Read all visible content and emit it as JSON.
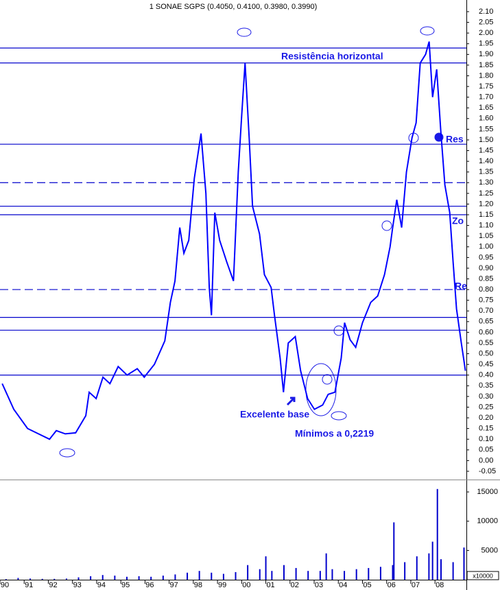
{
  "chart_data": [
    {
      "type": "line",
      "title": "1 SONAE SGPS (0.4050, 0.4100, 0.3980, 0.3990)",
      "color": "#0000ff",
      "annotations": [
        "Resistência horizontal",
        "Excelente base",
        "Mínimos a 0,2219",
        "Res",
        "Zo",
        "Re"
      ],
      "x": [
        1990.09,
        1990.57,
        1991.14,
        1992.05,
        1992.33,
        1992.7,
        1993.13,
        1993.55,
        1993.69,
        1993.98,
        1994.26,
        1994.55,
        1994.89,
        1995.26,
        1995.68,
        1995.97,
        1996.39,
        1996.82,
        1997.05,
        1997.24,
        1997.44,
        1997.61,
        1997.81,
        1998.04,
        1998.32,
        1998.52,
        1998.66,
        1998.75,
        1998.89,
        1999.09,
        1999.38,
        1999.66,
        1999.86,
        2000.0,
        2000.14,
        2000.31,
        2000.45,
        2000.74,
        2000.94,
        2001.22,
        2001.36,
        2001.59,
        2001.73,
        2001.93,
        2002.22,
        2002.44,
        2002.73,
        2003.01,
        2003.35,
        2003.58,
        2003.86,
        2004.12,
        2004.26,
        2004.49,
        2004.72,
        2005.0,
        2005.34,
        2005.63,
        2005.91,
        2006.14,
        2006.25,
        2006.42,
        2006.62,
        2006.82,
        2007.05,
        2007.22,
        2007.39,
        2007.61,
        2007.76,
        2007.9,
        2008.07,
        2008.24,
        2008.41,
        2008.61,
        2008.75,
        2008.89,
        2009.09,
        2009.26
      ],
      "values": [
        0.36,
        0.24,
        0.15,
        0.1,
        0.14,
        0.125,
        0.13,
        0.21,
        0.32,
        0.29,
        0.39,
        0.36,
        0.44,
        0.4,
        0.43,
        0.39,
        0.45,
        0.56,
        0.74,
        0.84,
        1.09,
        0.97,
        1.03,
        1.32,
        1.53,
        1.25,
        0.81,
        0.68,
        1.16,
        1.03,
        0.93,
        0.84,
        1.35,
        1.61,
        1.86,
        1.51,
        1.19,
        1.06,
        0.87,
        0.81,
        0.68,
        0.48,
        0.32,
        0.55,
        0.58,
        0.42,
        0.29,
        0.24,
        0.26,
        0.31,
        0.32,
        0.48,
        0.645,
        0.565,
        0.53,
        0.645,
        0.74,
        0.77,
        0.87,
        1.0,
        1.09,
        1.22,
        1.09,
        1.35,
        1.51,
        1.58,
        1.86,
        1.9,
        1.96,
        1.7,
        1.83,
        1.54,
        1.29,
        1.16,
        0.93,
        0.71,
        0.55,
        0.42
      ],
      "hlines": [
        {
          "value": 1.93,
          "style": "solid"
        },
        {
          "value": 1.86,
          "style": "solid"
        },
        {
          "value": 1.48,
          "style": "solid"
        },
        {
          "value": 1.3,
          "style": "dashed"
        },
        {
          "value": 1.19,
          "style": "solid"
        },
        {
          "value": 1.15,
          "style": "solid"
        },
        {
          "value": 0.8,
          "style": "dashed"
        },
        {
          "value": 0.67,
          "style": "solid"
        },
        {
          "value": 0.61,
          "style": "solid"
        },
        {
          "value": 0.4,
          "style": "solid"
        }
      ],
      "hline_color": "#0000cc",
      "xlim": [
        1990,
        2009.3
      ],
      "ylim": [
        -0.08,
        2.13
      ],
      "yticks": [
        {
          "value": 2.1,
          "label": "2.10"
        },
        2.05,
        {
          "value": 2.0,
          "label": "2.00"
        },
        1.95,
        {
          "value": 1.9,
          "label": "1.90"
        },
        1.85,
        {
          "value": 1.8,
          "label": "1.80"
        },
        1.75,
        {
          "value": 1.7,
          "label": "1.70"
        },
        1.65,
        {
          "value": 1.6,
          "label": "1.60"
        },
        1.55,
        {
          "value": 1.5,
          "label": "1.50"
        },
        1.45,
        {
          "value": 1.4,
          "label": "1.40"
        },
        1.35,
        {
          "value": 1.3,
          "label": "1.30"
        },
        1.25,
        {
          "value": 1.2,
          "label": "1.20"
        },
        1.15,
        {
          "value": 1.1,
          "label": "1.10"
        },
        1.05,
        {
          "value": 1.0,
          "label": "1.00"
        },
        0.95,
        {
          "value": 0.9,
          "label": "0.90"
        },
        0.85,
        {
          "value": 0.8,
          "label": "0.80"
        },
        0.75,
        {
          "value": 0.7,
          "label": "0.70"
        },
        0.65,
        {
          "value": 0.6,
          "label": "0.60"
        },
        0.55,
        {
          "value": 0.5,
          "label": "0.50"
        },
        0.45,
        {
          "value": 0.4,
          "label": "0.40"
        },
        0.35,
        {
          "value": 0.3,
          "label": "0.30"
        },
        0.25,
        {
          "value": 0.2,
          "label": "0.20"
        },
        0.15,
        {
          "value": 0.1,
          "label": "0.10"
        },
        0.05,
        {
          "value": 0,
          "label": "0.00"
        },
        -0.05
      ]
    },
    {
      "type": "bar",
      "color": "#0000cc",
      "axis_note": "x10000",
      "x": [
        1990.25,
        1990.75,
        1991.25,
        1991.75,
        1992.25,
        1992.75,
        1993.25,
        1993.75,
        1994.25,
        1994.75,
        1995.25,
        1995.75,
        1996.25,
        1996.75,
        1997.25,
        1997.75,
        1998.25,
        1998.75,
        1999.25,
        1999.75,
        2000.25,
        2000.75,
        2001.0,
        2001.25,
        2001.75,
        2002.25,
        2002.75,
        2003.25,
        2003.5,
        2003.75,
        2004.25,
        2004.75,
        2005.25,
        2005.75,
        2006.25,
        2006.3,
        2006.75,
        2007.25,
        2007.75,
        2007.9,
        2008.1,
        2008.25,
        2008.75,
        2009.2
      ],
      "values": [
        100,
        300,
        200,
        150,
        150,
        200,
        400,
        600,
        800,
        700,
        500,
        600,
        500,
        700,
        900,
        1200,
        1500,
        1200,
        1000,
        1300,
        2500,
        1800,
        4000,
        1500,
        2500,
        2000,
        1500,
        1500,
        4500,
        1800,
        1500,
        1800,
        2000,
        2200,
        2500,
        9800,
        3000,
        4000,
        4500,
        6500,
        15500,
        3500,
        3000,
        5500
      ],
      "xlim": [
        1990,
        2009.3
      ],
      "ylim": [
        0,
        17000
      ],
      "yticks": [
        5000,
        10000,
        15000
      ],
      "xticks": [
        {
          "value": 1990,
          "label": "90"
        },
        {
          "value": 1991,
          "label": "91"
        },
        {
          "value": 1992,
          "label": "92"
        },
        {
          "value": 1993,
          "label": "93"
        },
        {
          "value": 1994,
          "label": "94"
        },
        {
          "value": 1995,
          "label": "95"
        },
        {
          "value": 1996,
          "label": "96"
        },
        {
          "value": 1997,
          "label": "97"
        },
        {
          "value": 1998,
          "label": "98"
        },
        {
          "value": 1999,
          "label": "99"
        },
        {
          "value": 2000,
          "label": "00"
        },
        {
          "value": 2001,
          "label": "01"
        },
        {
          "value": 2002,
          "label": "02"
        },
        {
          "value": 2003,
          "label": "03"
        },
        {
          "value": 2004,
          "label": "04"
        },
        {
          "value": 2005,
          "label": "05"
        },
        {
          "value": 2006,
          "label": "06"
        },
        {
          "value": 2007,
          "label": "07"
        },
        {
          "value": 2008,
          "label": "08"
        }
      ]
    }
  ]
}
